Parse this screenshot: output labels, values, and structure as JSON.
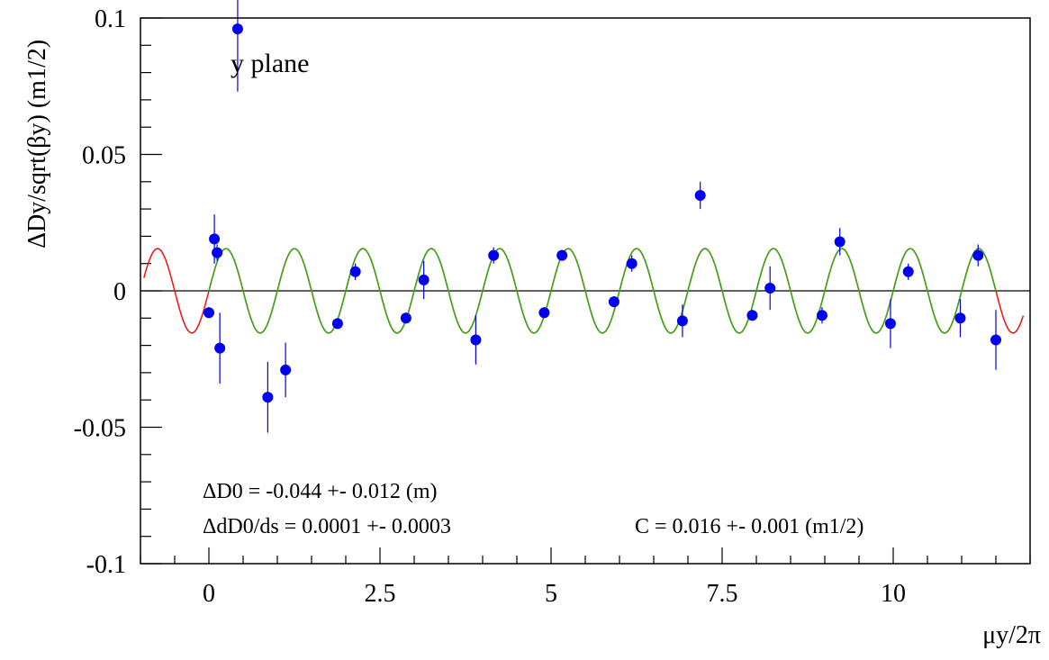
{
  "chart_data": {
    "type": "scatter",
    "title": "",
    "xlabel": "μy/2π",
    "ylabel": "ΔDy/sqrt(βy) (m1/2)",
    "xlim": [
      -1,
      12
    ],
    "ylim": [
      -0.1,
      0.1
    ],
    "grid": false,
    "x_ticks": [
      {
        "value": 0,
        "label": "0"
      },
      {
        "value": 2.5,
        "label": "2.5"
      },
      {
        "value": 5,
        "label": "5"
      },
      {
        "value": 7.5,
        "label": "7.5"
      },
      {
        "value": 10,
        "label": "10"
      }
    ],
    "y_ticks": [
      {
        "value": -0.1,
        "label": "-0.1"
      },
      {
        "value": -0.05,
        "label": "-0.05"
      },
      {
        "value": 0,
        "label": "0"
      },
      {
        "value": 0.05,
        "label": "0.05"
      },
      {
        "value": 0.1,
        "label": "0.1"
      }
    ],
    "plane_label": "y plane",
    "fit_annotations": {
      "d0": "ΔD0 = -0.044 +-  0.012 (m)",
      "dd0": "ΔdD0/ds = 0.0001 +- 0.0003",
      "c": "C =  0.016 +-  0.001 (m1/2)"
    },
    "measurements": [
      {
        "x": 0.0,
        "y": -0.008,
        "err": 0.002
      },
      {
        "x": 0.08,
        "y": 0.019,
        "err": 0.009
      },
      {
        "x": 0.12,
        "y": 0.014,
        "err": 0.003
      },
      {
        "x": 0.16,
        "y": -0.021,
        "err": 0.013
      },
      {
        "x": 0.42,
        "y": 0.096,
        "err": 0.023
      },
      {
        "x": 0.86,
        "y": -0.039,
        "err": 0.013
      },
      {
        "x": 1.12,
        "y": -0.029,
        "err": 0.01
      },
      {
        "x": 1.88,
        "y": -0.012,
        "err": 0.002
      },
      {
        "x": 2.14,
        "y": 0.007,
        "err": 0.003
      },
      {
        "x": 2.88,
        "y": -0.01,
        "err": 0.002
      },
      {
        "x": 3.14,
        "y": 0.004,
        "err": 0.007
      },
      {
        "x": 3.9,
        "y": -0.018,
        "err": 0.009
      },
      {
        "x": 4.16,
        "y": 0.013,
        "err": 0.003
      },
      {
        "x": 4.9,
        "y": -0.008,
        "err": 0.002
      },
      {
        "x": 5.16,
        "y": 0.013,
        "err": 0.002
      },
      {
        "x": 5.92,
        "y": -0.004,
        "err": 0.002
      },
      {
        "x": 6.18,
        "y": 0.01,
        "err": 0.003
      },
      {
        "x": 6.92,
        "y": -0.011,
        "err": 0.006
      },
      {
        "x": 7.18,
        "y": 0.035,
        "err": 0.005
      },
      {
        "x": 7.94,
        "y": -0.009,
        "err": 0.002
      },
      {
        "x": 8.2,
        "y": 0.001,
        "err": 0.008
      },
      {
        "x": 8.96,
        "y": -0.009,
        "err": 0.003
      },
      {
        "x": 9.22,
        "y": 0.018,
        "err": 0.005
      },
      {
        "x": 9.96,
        "y": -0.012,
        "err": 0.009
      },
      {
        "x": 10.22,
        "y": 0.007,
        "err": 0.003
      },
      {
        "x": 10.98,
        "y": -0.01,
        "err": 0.007
      },
      {
        "x": 11.24,
        "y": 0.013,
        "err": 0.004
      },
      {
        "x": 11.5,
        "y": -0.018,
        "err": 0.011
      }
    ],
    "fit_curve": {
      "amplitude": 0.0155,
      "phase_cycles": 0.0,
      "range_all": [
        -0.95,
        11.9
      ],
      "range_fit": [
        0.0,
        11.5
      ]
    },
    "colors": {
      "points": "#0000ee",
      "error_bars": "#0000ee",
      "fit_curve": "#33aa11",
      "extrapolated_curve": "#ee1111",
      "zero_line": "#000000",
      "frame": "#000000"
    }
  }
}
